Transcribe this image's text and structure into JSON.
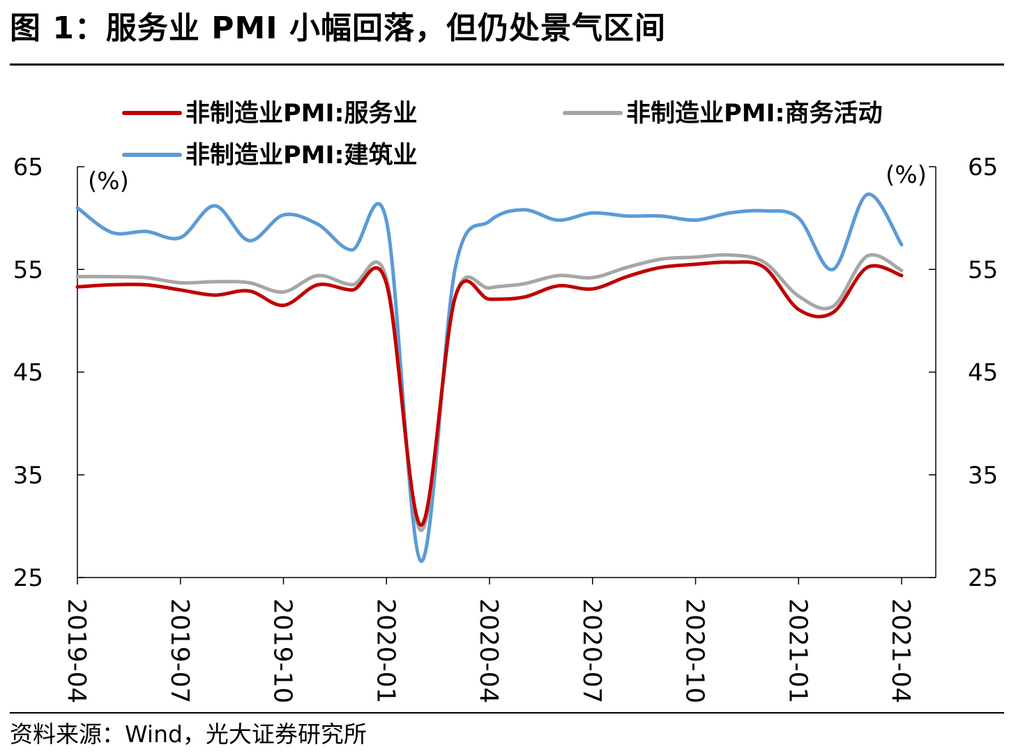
{
  "title": "图 1：服务业 PMI 小幅回落，但仍处景气区间",
  "source": "资料来源：Wind，光大证券研究所",
  "chart_data": {
    "type": "line",
    "y_unit_left": "(%)",
    "y_unit_right": "(%)",
    "ylim": [
      25,
      65
    ],
    "yticks": [
      25,
      35,
      45,
      55,
      65
    ],
    "x_tick_labels": [
      "2019-04",
      "2019-07",
      "2019-10",
      "2020-01",
      "2020-04",
      "2020-07",
      "2020-10",
      "2021-01",
      "2021-04"
    ],
    "x": [
      "2019-04",
      "2019-05",
      "2019-06",
      "2019-07",
      "2019-08",
      "2019-09",
      "2019-10",
      "2019-11",
      "2019-12",
      "2020-01",
      "2020-02",
      "2020-03",
      "2020-04",
      "2020-05",
      "2020-06",
      "2020-07",
      "2020-08",
      "2020-09",
      "2020-10",
      "2020-11",
      "2020-12",
      "2021-01",
      "2021-02",
      "2021-03",
      "2021-04"
    ],
    "series": [
      {
        "name": "非制造业PMI:服务业",
        "color": "#c00000",
        "values": [
          53.3,
          53.5,
          53.5,
          53.0,
          52.5,
          52.9,
          51.5,
          53.5,
          53.0,
          53.6,
          30.1,
          52.3,
          52.1,
          52.3,
          53.4,
          53.1,
          54.3,
          55.2,
          55.5,
          55.7,
          55.2,
          51.1,
          50.8,
          55.2,
          54.4
        ]
      },
      {
        "name": "非制造业PMI:商务活动",
        "color": "#a6a6a6",
        "values": [
          54.3,
          54.3,
          54.2,
          53.7,
          53.8,
          53.7,
          52.8,
          54.4,
          53.5,
          54.1,
          29.6,
          52.3,
          53.2,
          53.6,
          54.4,
          54.2,
          55.2,
          56.0,
          56.2,
          56.4,
          55.7,
          52.4,
          51.4,
          56.3,
          54.9
        ]
      },
      {
        "name": "非制造业PMI:建筑业",
        "color": "#5b9bd5",
        "values": [
          61.0,
          58.6,
          58.7,
          58.1,
          61.2,
          57.8,
          60.3,
          59.4,
          56.9,
          59.7,
          26.6,
          55.1,
          59.7,
          60.8,
          59.8,
          60.5,
          60.2,
          60.2,
          59.8,
          60.5,
          60.7,
          60.0,
          55.0,
          62.3,
          57.4
        ]
      }
    ],
    "legend_position": "top",
    "grid": false
  }
}
